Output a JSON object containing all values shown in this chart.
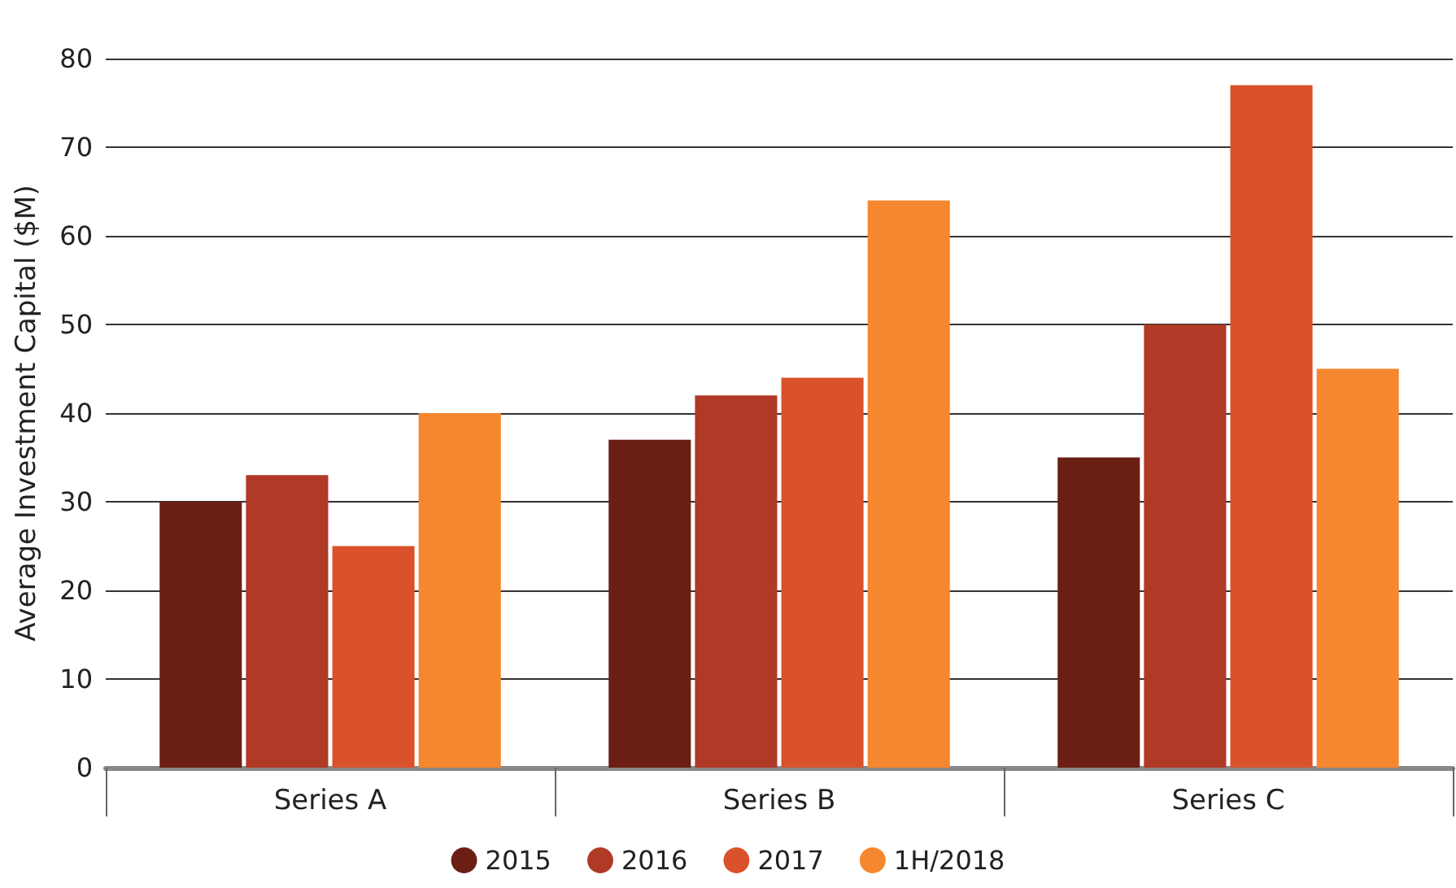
{
  "chart_data": {
    "type": "bar",
    "ylabel": "Average Investment Capital ($M)",
    "categories": [
      "Series A",
      "Series B",
      "Series C"
    ],
    "series": [
      {
        "name": "2015",
        "color": "#6b1f14",
        "values": [
          30,
          37,
          35
        ]
      },
      {
        "name": "2016",
        "color": "#b03a26",
        "values": [
          33,
          42,
          50
        ]
      },
      {
        "name": "2017",
        "color": "#d9522b",
        "values": [
          25,
          44,
          77
        ]
      },
      {
        "name": "1H/2018",
        "color": "#f5872e",
        "values": [
          40,
          64,
          45
        ]
      }
    ],
    "ylim": [
      0,
      80
    ],
    "yticks": [
      0,
      10,
      20,
      30,
      40,
      50,
      60,
      70,
      80
    ],
    "grid": "y",
    "legend": "bottom"
  }
}
